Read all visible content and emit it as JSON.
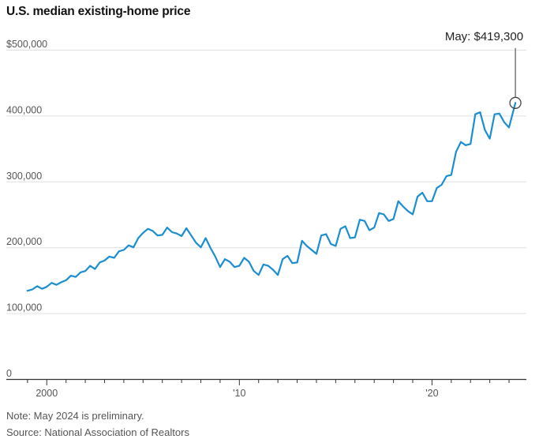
{
  "title": "U.S. median existing-home price",
  "notes": {
    "note": "Note: May 2024 is preliminary.",
    "source": "Source: National Association of Realtors"
  },
  "annotation": {
    "text": "May: $419,300",
    "date": 2024.33,
    "value": 419300
  },
  "colors": {
    "line": "#1b8ed1",
    "grid": "#e0e0e0",
    "axis": "#333333",
    "label": "#555555",
    "leader": "#555555"
  },
  "chart_data": {
    "type": "line",
    "title": "U.S. median existing-home price",
    "xlabel": "",
    "ylabel": "",
    "xlim": [
      1997.9,
      2024.9
    ],
    "ylim": [
      0,
      500000
    ],
    "y_ticks": [
      {
        "value": 0,
        "label": "0"
      },
      {
        "value": 100000,
        "label": "100,000"
      },
      {
        "value": 200000,
        "label": "200,000"
      },
      {
        "value": 300000,
        "label": "300,000"
      },
      {
        "value": 400000,
        "label": "400,000"
      },
      {
        "value": 500000,
        "label": "$500,000"
      }
    ],
    "x_ticks": [
      {
        "value": 2000,
        "label": "2000"
      },
      {
        "value": 2010,
        "label": "'10"
      },
      {
        "value": 2020,
        "label": "'20"
      }
    ],
    "x_minor_ticks": [
      1999,
      2001,
      2002,
      2003,
      2004,
      2005,
      2006,
      2007,
      2008,
      2009,
      2011,
      2012,
      2013,
      2014,
      2015,
      2016,
      2017,
      2018,
      2019,
      2021,
      2022,
      2023,
      2024
    ],
    "grid": true,
    "series": [
      {
        "x": [
          1999.0,
          1999.25,
          1999.5,
          1999.75,
          2000.0,
          2000.25,
          2000.5,
          2000.75,
          2001.0,
          2001.25,
          2001.5,
          2001.75,
          2002.0,
          2002.25,
          2002.5,
          2002.75,
          2003.0,
          2003.25,
          2003.5,
          2003.75,
          2004.0,
          2004.25,
          2004.5,
          2004.75,
          2005.0,
          2005.25,
          2005.5,
          2005.75,
          2006.0,
          2006.25,
          2006.5,
          2006.75,
          2007.0,
          2007.25,
          2007.5,
          2007.75,
          2008.0,
          2008.25,
          2008.5,
          2008.75,
          2009.0,
          2009.25,
          2009.5,
          2009.75,
          2010.0,
          2010.25,
          2010.5,
          2010.75,
          2011.0,
          2011.25,
          2011.5,
          2011.75,
          2012.0,
          2012.25,
          2012.5,
          2012.75,
          2013.0,
          2013.25,
          2013.5,
          2013.75,
          2014.0,
          2014.25,
          2014.5,
          2014.75,
          2015.0,
          2015.25,
          2015.5,
          2015.75,
          2016.0,
          2016.25,
          2016.5,
          2016.75,
          2017.0,
          2017.25,
          2017.5,
          2017.75,
          2018.0,
          2018.25,
          2018.5,
          2018.75,
          2019.0,
          2019.25,
          2019.5,
          2019.75,
          2020.0,
          2020.25,
          2020.5,
          2020.75,
          2021.0,
          2021.25,
          2021.5,
          2021.75,
          2022.0,
          2022.25,
          2022.5,
          2022.75,
          2023.0,
          2023.25,
          2023.5,
          2023.75,
          2024.0,
          2024.33
        ],
        "values": [
          134000,
          136000,
          141000,
          137000,
          140000,
          146000,
          143000,
          147000,
          150000,
          157000,
          155000,
          162000,
          164000,
          172000,
          167000,
          177000,
          180000,
          186000,
          184000,
          194000,
          196000,
          203000,
          200000,
          214000,
          222000,
          228000,
          225000,
          218000,
          219000,
          230000,
          223000,
          221000,
          217000,
          229000,
          218000,
          207000,
          200000,
          214000,
          199000,
          186000,
          170000,
          182000,
          178000,
          170000,
          172000,
          184000,
          178000,
          164000,
          158000,
          174000,
          172000,
          166000,
          158000,
          182000,
          187000,
          176000,
          177000,
          210000,
          202000,
          196000,
          190000,
          218000,
          220000,
          205000,
          202000,
          228000,
          232000,
          214000,
          215000,
          242000,
          240000,
          226000,
          230000,
          252000,
          250000,
          240000,
          243000,
          270000,
          262000,
          255000,
          250000,
          277000,
          283000,
          270000,
          270000,
          290000,
          295000,
          308000,
          310000,
          345000,
          360000,
          355000,
          357000,
          402000,
          405000,
          378000,
          365000,
          402000,
          403000,
          390000,
          382000,
          419300
        ]
      }
    ]
  }
}
